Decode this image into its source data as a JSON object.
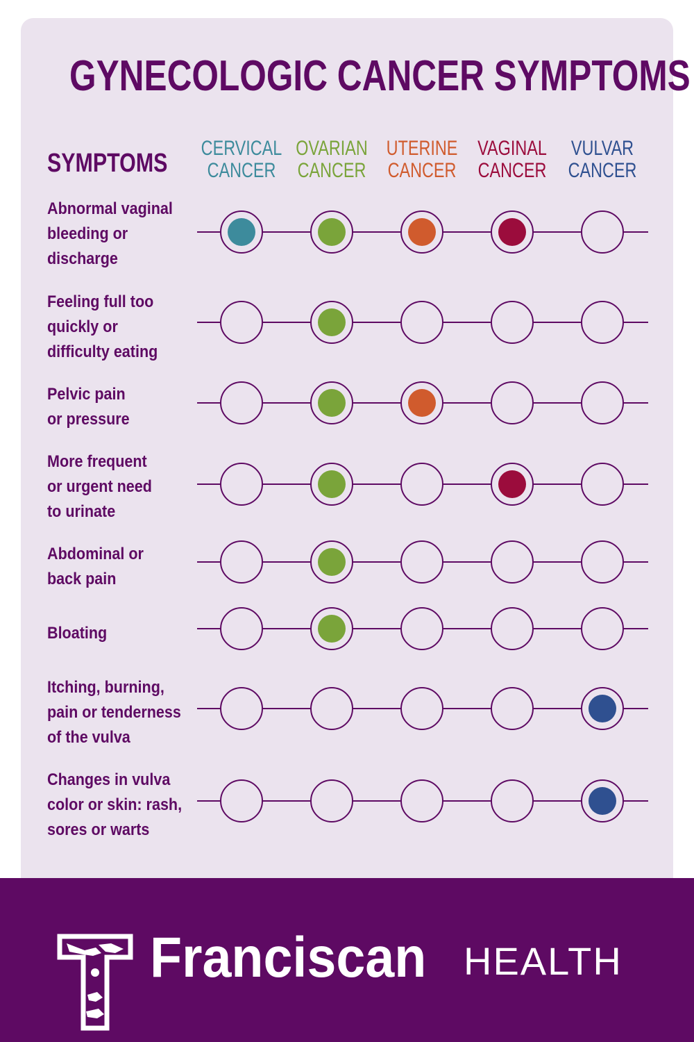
{
  "title": "GYNECOLOGIC CANCER SYMPTOMS",
  "symptoms_heading": "SYMPTOMS",
  "cancers": [
    {
      "label": "CERVICAL\nCANCER",
      "color": "#3d8b9c"
    },
    {
      "label": "OVARIAN\nCANCER",
      "color": "#7aa43a"
    },
    {
      "label": "UTERINE\nCANCER",
      "color": "#d05b2d"
    },
    {
      "label": "VAGINAL\nCANCER",
      "color": "#9b0c3c"
    },
    {
      "label": "VULVAR\nCANCER",
      "color": "#2f5090"
    }
  ],
  "rows": [
    {
      "label": "Abnormal vaginal\nbleeding or\ndischarge",
      "marks": [
        true,
        true,
        true,
        true,
        false
      ]
    },
    {
      "label": "Feeling full too\nquickly or\ndifficulty eating",
      "marks": [
        false,
        true,
        false,
        false,
        false
      ]
    },
    {
      "label": "Pelvic pain\nor pressure",
      "marks": [
        false,
        true,
        true,
        false,
        false
      ]
    },
    {
      "label": "More frequent\nor urgent need\nto urinate",
      "marks": [
        false,
        true,
        false,
        true,
        false
      ]
    },
    {
      "label": "Abdominal or\nback pain",
      "marks": [
        false,
        true,
        false,
        false,
        false
      ]
    },
    {
      "label": "Bloating",
      "marks": [
        false,
        true,
        false,
        false,
        false
      ]
    },
    {
      "label": "Itching, burning,\npain or tenderness\nof the vulva",
      "marks": [
        false,
        false,
        false,
        false,
        true
      ]
    },
    {
      "label": "Changes in vulva\ncolor or skin: rash,\nsores or warts",
      "marks": [
        false,
        false,
        false,
        false,
        true
      ]
    }
  ],
  "brand": {
    "name": "Franciscan",
    "sub": "HEALTH"
  },
  "colors": {
    "primary": "#5e0a63",
    "panel": "#ebe3ee"
  }
}
